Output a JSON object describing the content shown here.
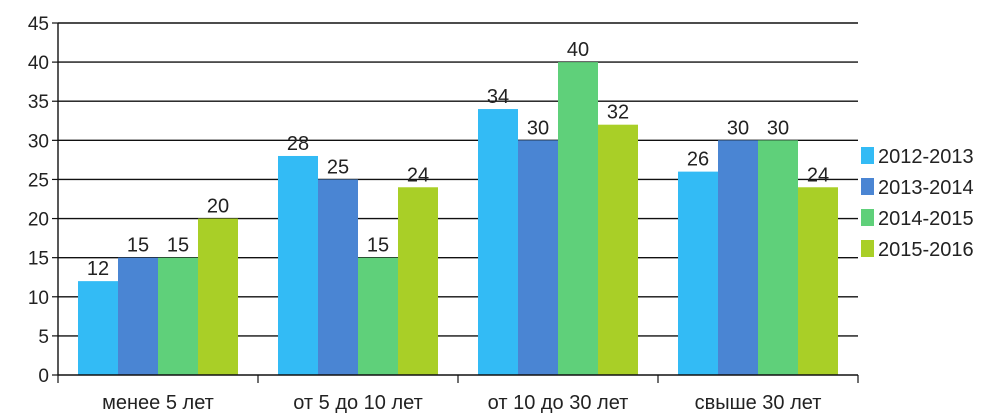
{
  "chart_data": {
    "type": "bar",
    "title": "",
    "xlabel": "",
    "ylabel": "",
    "categories": [
      "менее 5 лет",
      "от 5 до 10 лет",
      "от 10 до 30 лет",
      "свыше 30 лет"
    ],
    "series": [
      {
        "name": "2012-2013",
        "color": "#33bbf5",
        "values": [
          12,
          28,
          34,
          26
        ]
      },
      {
        "name": "2013-2014",
        "color": "#4a85d3",
        "values": [
          15,
          25,
          30,
          30
        ]
      },
      {
        "name": "2014-2015",
        "color": "#5fd07a",
        "values": [
          15,
          15,
          40,
          30
        ]
      },
      {
        "name": "2015-2016",
        "color": "#a9cf27",
        "values": [
          20,
          24,
          32,
          24
        ]
      }
    ],
    "ylim": [
      0,
      45
    ],
    "yticks": [
      0,
      5,
      10,
      15,
      20,
      25,
      30,
      35,
      40,
      45
    ],
    "grid": true,
    "legend_position": "right"
  }
}
